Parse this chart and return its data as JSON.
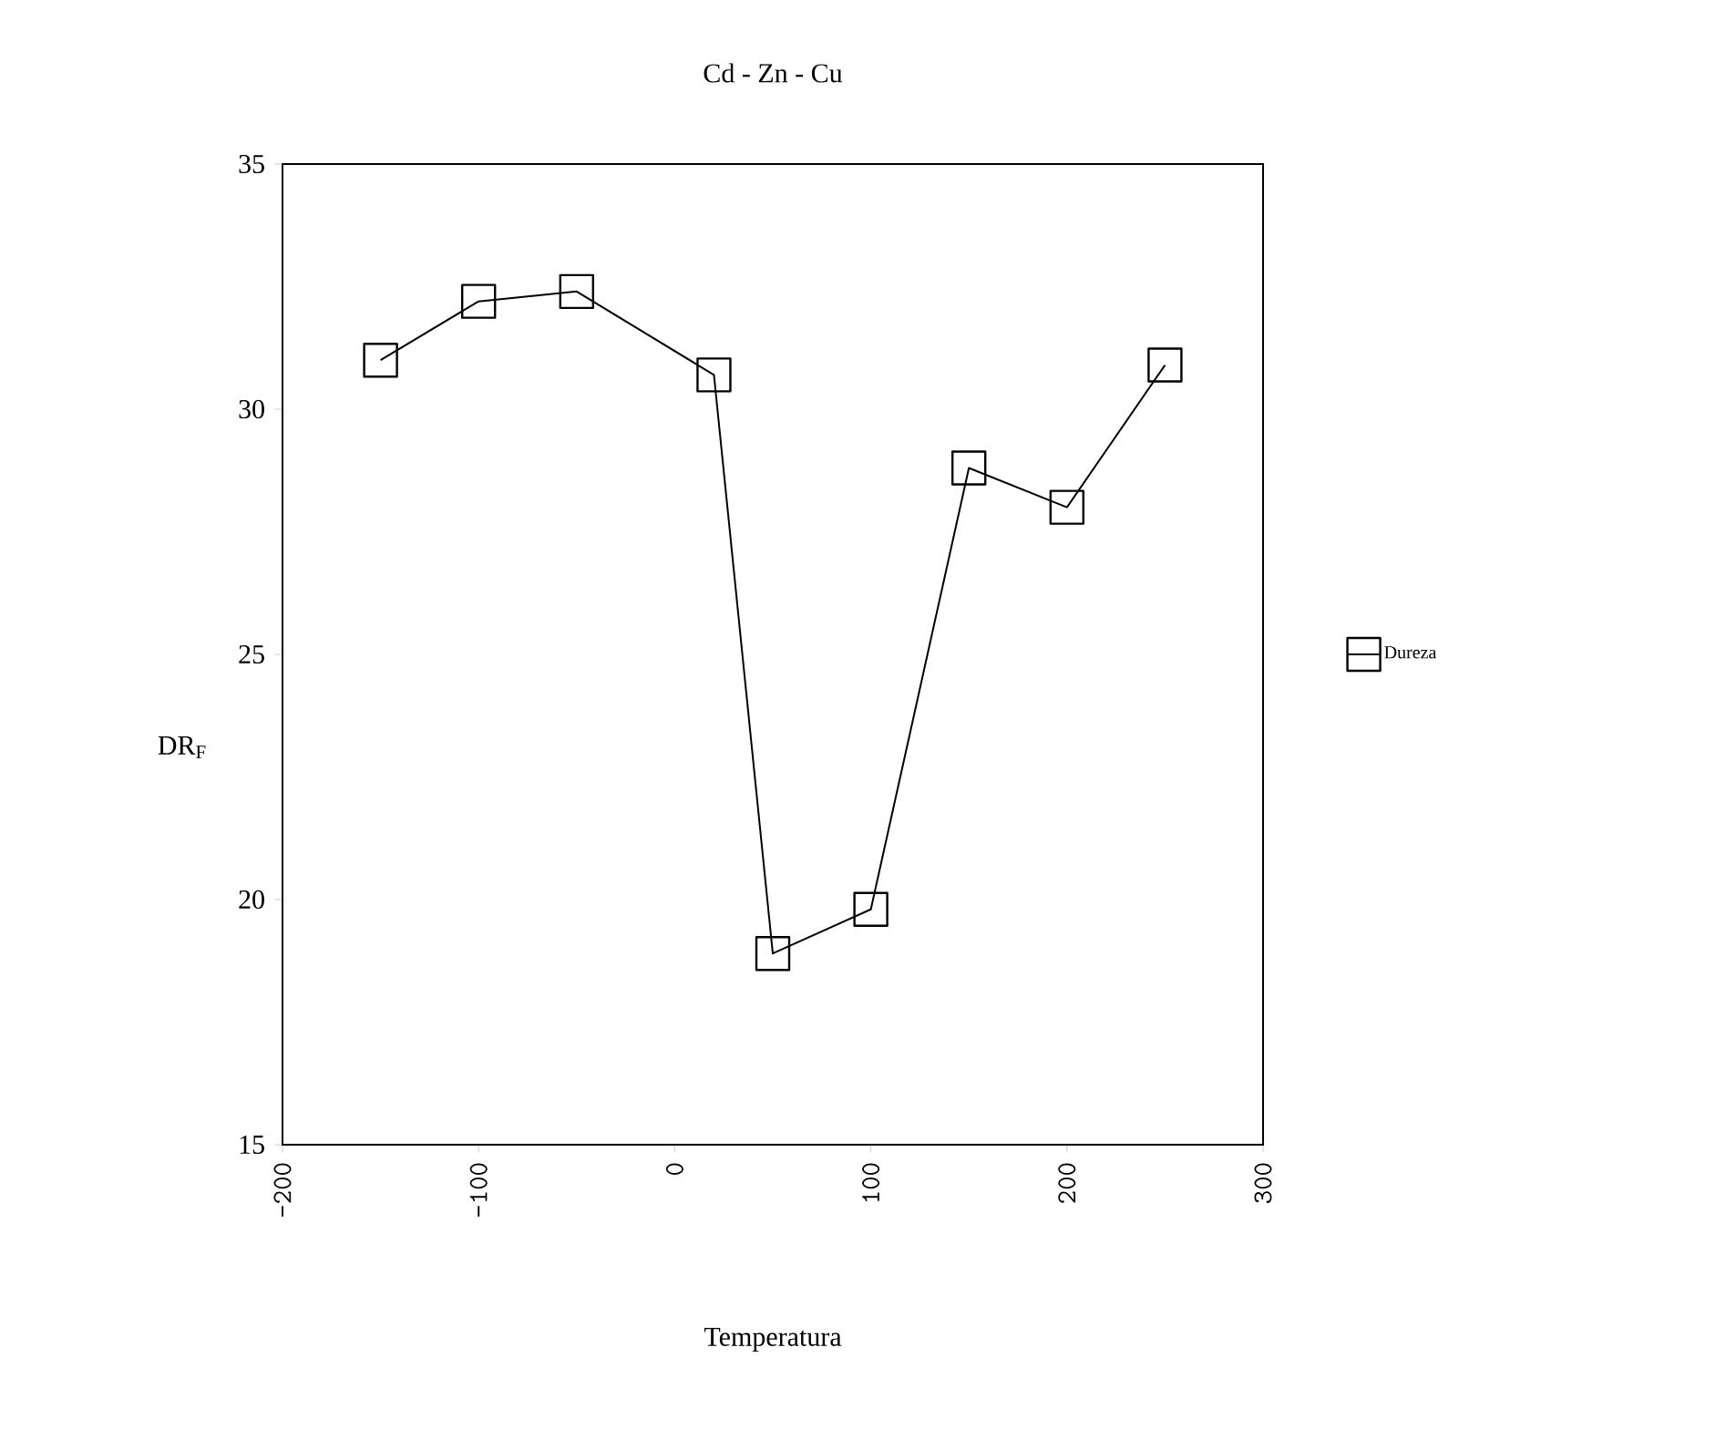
{
  "chart_data": {
    "type": "line",
    "title": "Cd - Zn - Cu",
    "xlabel": "Temperatura",
    "ylabel": "DR$_{F}$",
    "x": [
      -150,
      -100,
      -50,
      20,
      50,
      100,
      150,
      200,
      250
    ],
    "series": [
      {
        "name": "Dureza",
        "color": "#000000",
        "values": [
          31.0,
          32.2,
          32.4,
          30.7,
          18.9,
          19.8,
          28.8,
          28.0,
          30.9
        ]
      }
    ],
    "xlim": [
      -200,
      300
    ],
    "xticks": [
      -200,
      -100,
      0,
      100,
      200,
      300
    ],
    "ylim": [
      15,
      35
    ],
    "yticks": [
      15,
      20,
      25,
      30,
      35
    ],
    "grid": false,
    "legend": "right",
    "marker": "square",
    "line_style": "solid"
  }
}
